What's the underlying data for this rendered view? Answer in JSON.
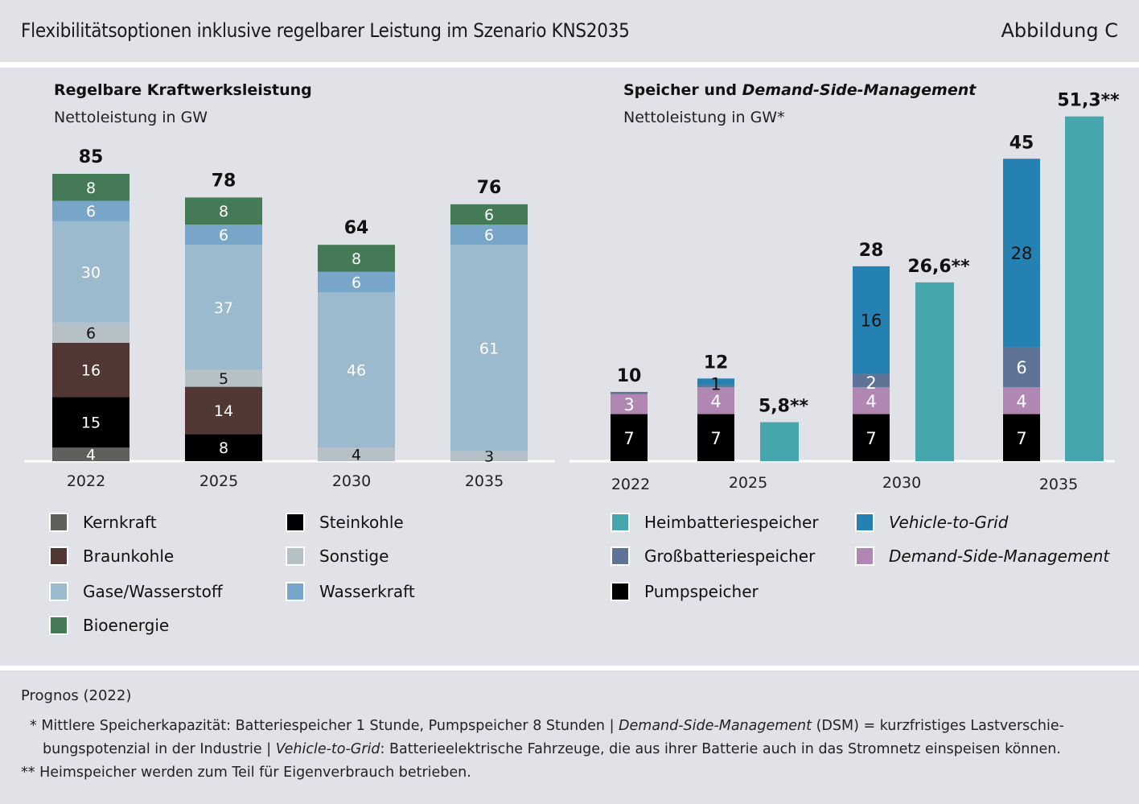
{
  "header": {
    "title": "Flexibilitätsoptionen inklusive regelbarer Leistung im Szenario KNS2035",
    "figure_label": "Abbildung C"
  },
  "chart_data": [
    {
      "type": "bar",
      "stacked": true,
      "title": "Regelbare Kraftwerksleistung",
      "subtitle": "Nettoleistung in GW",
      "categories": [
        "2022",
        "2025",
        "2030",
        "2035"
      ],
      "totals": [
        85,
        78,
        64,
        76
      ],
      "series": [
        {
          "name": "Kernkraft",
          "color": "#5e615b",
          "label_color": "#ffffff",
          "values": [
            4,
            0,
            0,
            0
          ]
        },
        {
          "name": "Steinkohle",
          "color": "#000000",
          "label_color": "#ffffff",
          "values": [
            15,
            8,
            0,
            0
          ]
        },
        {
          "name": "Braunkohle",
          "color": "#523834",
          "label_color": "#ffffff",
          "values": [
            16,
            14,
            0,
            0
          ]
        },
        {
          "name": "Sonstige",
          "color": "#b5c0c7",
          "label_color": "#111111",
          "values": [
            6,
            5,
            4,
            3
          ]
        },
        {
          "name": "Gase/Wasserstoff",
          "color": "#9bbacd",
          "label_color": "#ffffff",
          "values": [
            30,
            37,
            46,
            61
          ]
        },
        {
          "name": "Wasserkraft",
          "color": "#78a6c9",
          "label_color": "#ffffff",
          "values": [
            6,
            6,
            6,
            6
          ]
        },
        {
          "name": "Bioenergie",
          "color": "#447a55",
          "label_color": "#ffffff",
          "values": [
            8,
            8,
            8,
            6
          ]
        }
      ],
      "legend": {
        "placement": "bottom",
        "items": [
          {
            "name": "Kernkraft",
            "color": "#5e615b",
            "italic": false
          },
          {
            "name": "Steinkohle",
            "color": "#000000",
            "italic": false
          },
          {
            "name": "Braunkohle",
            "color": "#523834",
            "italic": false
          },
          {
            "name": "Sonstige",
            "color": "#b5c0c7",
            "italic": false
          },
          {
            "name": "Gase/Wasserstoff",
            "color": "#9bbacd",
            "italic": false
          },
          {
            "name": "Wasserkraft",
            "color": "#78a6c9",
            "italic": false
          },
          {
            "name": "Bioenergie",
            "color": "#447a55",
            "italic": false
          }
        ]
      },
      "ylim": [
        0,
        85
      ],
      "grid": false
    },
    {
      "type": "bar",
      "stacked": true,
      "title_plain": "Speicher und ",
      "title_italic": "Demand-Side-Management",
      "subtitle": "Nettoleistung in GW*",
      "categories": [
        "2022",
        "2025",
        "2030",
        "2035"
      ],
      "stacked_totals": [
        10,
        12,
        28,
        45
      ],
      "stacked_series": [
        {
          "name": "Pumpspeicher",
          "color": "#000000",
          "label_color": "#ffffff",
          "values": [
            7,
            7,
            7,
            7
          ]
        },
        {
          "name": "Demand-Side-Management",
          "color": "#b086b3",
          "label_color": "#ffffff",
          "values": [
            3,
            4,
            4,
            4
          ]
        },
        {
          "name": "Großbatteriespeicher",
          "color": "#5e7396",
          "label_color": "#ffffff",
          "values": [
            0.3,
            0.3,
            2,
            6
          ],
          "labels": [
            "",
            "",
            "2",
            "6"
          ]
        },
        {
          "name": "Vehicle-to-Grid",
          "color": "#2481b2",
          "label_color": "#111111",
          "values": [
            0,
            1,
            16,
            28
          ],
          "labels": [
            "",
            "1",
            "16",
            "28"
          ]
        }
      ],
      "separate_series": {
        "name": "Heimbatteriespeicher",
        "color": "#46a6ae",
        "values": [
          null,
          5.8,
          26.6,
          51.3
        ],
        "labels": [
          "",
          "5,8**",
          "26,6**",
          "51,3**"
        ]
      },
      "legend": {
        "placement": "bottom",
        "items": [
          {
            "name": "Heimbatteriespeicher",
            "color": "#46a6ae",
            "italic": false
          },
          {
            "name": "Vehicle-to-Grid",
            "color": "#2481b2",
            "italic": true
          },
          {
            "name": "Großbatteriespeicher",
            "color": "#5e7396",
            "italic": false
          },
          {
            "name": "Demand-Side-Management",
            "color": "#b086b3",
            "italic": true
          },
          {
            "name": "Pumpspeicher",
            "color": "#000000",
            "italic": false
          }
        ]
      },
      "ylim": [
        0,
        51.3
      ],
      "grid": false
    }
  ],
  "footer": {
    "source": "Prognos (2022)",
    "note1_line1_a": "* Mittlere Speicherkapazität: Batteriespeicher 1 Stunde, Pumpspeicher 8 Stunden | ",
    "note1_line1_b": "Demand-Side-Management",
    "note1_line1_c": " (DSM) = kurzfristiges Lastverschie-",
    "note1_line2_a": "bungspotenzial in der Industrie | ",
    "note1_line2_b": "Vehicle-to-Grid",
    "note1_line2_c": ": Batterieelektrische Fahrzeuge, die aus ihrer Batterie auch in das Stromnetz einspeisen können.",
    "note2": "** Heimspeicher werden zum Teil für Eigenverbrauch betrieben."
  }
}
